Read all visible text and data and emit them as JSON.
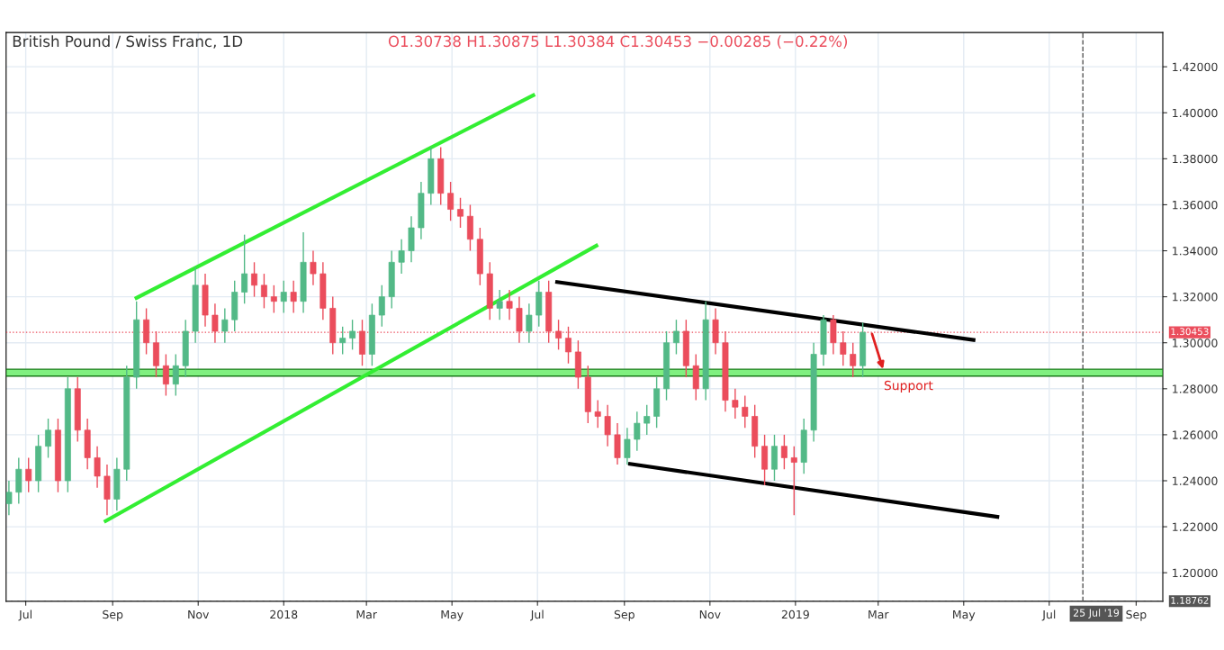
{
  "chart_data": {
    "type": "candlestick",
    "title": "British Pound / Swiss Franc, 1D",
    "subtitle": "O1.30738 H1.30875 L1.30384 C1.30453 −0.00285 (−0.22%)",
    "x": [
      "2017-06-19",
      "2017-06-26",
      "2017-07-03",
      "2017-07-10",
      "2017-07-17",
      "2017-07-24",
      "2017-07-31",
      "2017-08-07",
      "2017-08-14",
      "2017-08-21",
      "2017-08-28",
      "2017-09-04",
      "2017-09-11",
      "2017-09-18",
      "2017-09-25",
      "2017-10-02",
      "2017-10-09",
      "2017-10-16",
      "2017-10-23",
      "2017-10-30",
      "2017-11-06",
      "2017-11-13",
      "2017-11-20",
      "2017-11-27",
      "2017-12-04",
      "2017-12-11",
      "2017-12-18",
      "2017-12-25",
      "2018-01-01",
      "2018-01-08",
      "2018-01-15",
      "2018-01-22",
      "2018-01-29",
      "2018-02-05",
      "2018-02-12",
      "2018-02-19",
      "2018-02-26",
      "2018-03-05",
      "2018-03-12",
      "2018-03-19",
      "2018-03-26",
      "2018-04-02",
      "2018-04-09",
      "2018-04-16",
      "2018-04-23",
      "2018-04-30",
      "2018-05-07",
      "2018-05-14",
      "2018-05-21",
      "2018-05-28",
      "2018-06-04",
      "2018-06-11",
      "2018-06-18",
      "2018-06-25",
      "2018-07-02",
      "2018-07-09",
      "2018-07-16",
      "2018-07-23",
      "2018-07-30",
      "2018-08-06",
      "2018-08-13",
      "2018-08-20",
      "2018-08-27",
      "2018-09-03",
      "2018-09-10",
      "2018-09-17",
      "2018-09-24",
      "2018-10-01",
      "2018-10-08",
      "2018-10-15",
      "2018-10-22",
      "2018-10-29",
      "2018-11-05",
      "2018-11-12",
      "2018-11-19",
      "2018-11-26",
      "2018-12-03",
      "2018-12-10",
      "2018-12-17",
      "2018-12-24",
      "2018-12-31",
      "2019-01-07",
      "2019-01-14",
      "2019-01-21",
      "2019-01-28",
      "2019-02-04",
      "2019-02-11",
      "2019-02-18"
    ],
    "ohlc": [
      [
        1.23,
        1.24,
        1.225,
        1.235
      ],
      [
        1.235,
        1.25,
        1.23,
        1.245
      ],
      [
        1.245,
        1.25,
        1.235,
        1.24
      ],
      [
        1.24,
        1.26,
        1.235,
        1.255
      ],
      [
        1.255,
        1.267,
        1.25,
        1.262
      ],
      [
        1.262,
        1.267,
        1.235,
        1.24
      ],
      [
        1.24,
        1.285,
        1.235,
        1.28
      ],
      [
        1.28,
        1.285,
        1.257,
        1.262
      ],
      [
        1.262,
        1.267,
        1.245,
        1.25
      ],
      [
        1.25,
        1.255,
        1.237,
        1.242
      ],
      [
        1.242,
        1.247,
        1.225,
        1.232
      ],
      [
        1.232,
        1.25,
        1.227,
        1.245
      ],
      [
        1.245,
        1.29,
        1.24,
        1.285
      ],
      [
        1.285,
        1.318,
        1.28,
        1.31
      ],
      [
        1.31,
        1.315,
        1.295,
        1.3
      ],
      [
        1.3,
        1.305,
        1.285,
        1.29
      ],
      [
        1.29,
        1.295,
        1.277,
        1.282
      ],
      [
        1.282,
        1.295,
        1.277,
        1.29
      ],
      [
        1.29,
        1.31,
        1.285,
        1.305
      ],
      [
        1.305,
        1.333,
        1.3,
        1.325
      ],
      [
        1.325,
        1.33,
        1.307,
        1.312
      ],
      [
        1.312,
        1.317,
        1.3,
        1.305
      ],
      [
        1.305,
        1.315,
        1.3,
        1.31
      ],
      [
        1.31,
        1.327,
        1.305,
        1.322
      ],
      [
        1.322,
        1.347,
        1.317,
        1.33
      ],
      [
        1.33,
        1.335,
        1.32,
        1.325
      ],
      [
        1.325,
        1.33,
        1.315,
        1.32
      ],
      [
        1.32,
        1.325,
        1.313,
        1.318
      ],
      [
        1.318,
        1.327,
        1.313,
        1.322
      ],
      [
        1.322,
        1.327,
        1.313,
        1.318
      ],
      [
        1.318,
        1.348,
        1.313,
        1.335
      ],
      [
        1.335,
        1.34,
        1.325,
        1.33
      ],
      [
        1.33,
        1.335,
        1.31,
        1.315
      ],
      [
        1.315,
        1.32,
        1.295,
        1.3
      ],
      [
        1.3,
        1.307,
        1.295,
        1.302
      ],
      [
        1.302,
        1.31,
        1.297,
        1.305
      ],
      [
        1.305,
        1.31,
        1.29,
        1.295
      ],
      [
        1.295,
        1.317,
        1.29,
        1.312
      ],
      [
        1.312,
        1.325,
        1.307,
        1.32
      ],
      [
        1.32,
        1.34,
        1.315,
        1.335
      ],
      [
        1.335,
        1.345,
        1.33,
        1.34
      ],
      [
        1.34,
        1.355,
        1.335,
        1.35
      ],
      [
        1.35,
        1.37,
        1.345,
        1.365
      ],
      [
        1.365,
        1.385,
        1.36,
        1.38
      ],
      [
        1.38,
        1.385,
        1.36,
        1.365
      ],
      [
        1.365,
        1.37,
        1.353,
        1.358
      ],
      [
        1.358,
        1.363,
        1.35,
        1.355
      ],
      [
        1.355,
        1.36,
        1.34,
        1.345
      ],
      [
        1.345,
        1.35,
        1.325,
        1.33
      ],
      [
        1.33,
        1.335,
        1.31,
        1.315
      ],
      [
        1.315,
        1.323,
        1.31,
        1.318
      ],
      [
        1.318,
        1.323,
        1.31,
        1.315
      ],
      [
        1.315,
        1.32,
        1.3,
        1.305
      ],
      [
        1.305,
        1.317,
        1.3,
        1.312
      ],
      [
        1.312,
        1.327,
        1.307,
        1.322
      ],
      [
        1.322,
        1.327,
        1.3,
        1.305
      ],
      [
        1.305,
        1.31,
        1.297,
        1.302
      ],
      [
        1.302,
        1.307,
        1.291,
        1.296
      ],
      [
        1.296,
        1.301,
        1.28,
        1.285
      ],
      [
        1.285,
        1.29,
        1.265,
        1.27
      ],
      [
        1.27,
        1.275,
        1.263,
        1.268
      ],
      [
        1.268,
        1.273,
        1.255,
        1.26
      ],
      [
        1.26,
        1.265,
        1.247,
        1.25
      ],
      [
        1.25,
        1.263,
        1.247,
        1.258
      ],
      [
        1.258,
        1.27,
        1.253,
        1.265
      ],
      [
        1.265,
        1.273,
        1.26,
        1.268
      ],
      [
        1.268,
        1.285,
        1.263,
        1.28
      ],
      [
        1.28,
        1.305,
        1.275,
        1.3
      ],
      [
        1.3,
        1.31,
        1.295,
        1.305
      ],
      [
        1.305,
        1.31,
        1.285,
        1.29
      ],
      [
        1.29,
        1.295,
        1.275,
        1.28
      ],
      [
        1.28,
        1.318,
        1.275,
        1.31
      ],
      [
        1.31,
        1.315,
        1.295,
        1.3
      ],
      [
        1.3,
        1.305,
        1.27,
        1.275
      ],
      [
        1.275,
        1.28,
        1.267,
        1.272
      ],
      [
        1.272,
        1.277,
        1.263,
        1.268
      ],
      [
        1.268,
        1.273,
        1.25,
        1.255
      ],
      [
        1.255,
        1.26,
        1.238,
        1.245
      ],
      [
        1.245,
        1.26,
        1.24,
        1.255
      ],
      [
        1.255,
        1.26,
        1.245,
        1.25
      ],
      [
        1.25,
        1.255,
        1.225,
        1.248
      ],
      [
        1.248,
        1.267,
        1.243,
        1.262
      ],
      [
        1.262,
        1.3,
        1.257,
        1.295
      ],
      [
        1.295,
        1.312,
        1.29,
        1.31
      ],
      [
        1.31,
        1.312,
        1.295,
        1.3
      ],
      [
        1.3,
        1.305,
        1.29,
        1.295
      ],
      [
        1.295,
        1.3,
        1.285,
        1.29
      ],
      [
        1.29,
        1.30875,
        1.285,
        1.30453
      ]
    ],
    "colors": [
      "#53b987",
      "#53b987",
      "#eb4d5c",
      "#53b987",
      "#53b987",
      "#eb4d5c",
      "#53b987",
      "#eb4d5c",
      "#eb4d5c",
      "#eb4d5c",
      "#eb4d5c",
      "#53b987",
      "#53b987",
      "#53b987",
      "#eb4d5c",
      "#eb4d5c",
      "#eb4d5c",
      "#53b987",
      "#53b987",
      "#53b987",
      "#eb4d5c",
      "#eb4d5c",
      "#53b987",
      "#53b987",
      "#53b987",
      "#eb4d5c",
      "#eb4d5c",
      "#eb4d5c",
      "#53b987",
      "#eb4d5c",
      "#53b987",
      "#eb4d5c",
      "#eb4d5c",
      "#eb4d5c",
      "#53b987",
      "#53b987",
      "#eb4d5c",
      "#53b987",
      "#53b987",
      "#53b987",
      "#53b987",
      "#53b987",
      "#53b987",
      "#53b987",
      "#eb4d5c",
      "#eb4d5c",
      "#eb4d5c",
      "#eb4d5c",
      "#eb4d5c",
      "#eb4d5c",
      "#53b987",
      "#eb4d5c",
      "#eb4d5c",
      "#53b987",
      "#53b987",
      "#eb4d5c",
      "#eb4d5c",
      "#eb4d5c",
      "#eb4d5c",
      "#eb4d5c",
      "#eb4d5c",
      "#eb4d5c",
      "#eb4d5c",
      "#53b987",
      "#53b987",
      "#53b987",
      "#53b987",
      "#53b987",
      "#53b987",
      "#eb4d5c",
      "#eb4d5c",
      "#53b987",
      "#eb4d5c",
      "#eb4d5c",
      "#eb4d5c",
      "#eb4d5c",
      "#eb4d5c",
      "#eb4d5c",
      "#53b987",
      "#eb4d5c",
      "#eb4d5c",
      "#53b987",
      "#53b987",
      "#53b987",
      "#eb4d5c",
      "#eb4d5c",
      "#eb4d5c",
      "#53b987"
    ],
    "series": [
      {
        "type": "line",
        "color": "#33ee33",
        "x": [
          "2017-09-18",
          "2018-06-28"
        ],
        "values": [
          1.3195,
          1.4076
        ]
      },
      {
        "type": "line",
        "color": "#33ee33",
        "x": [
          "2017-08-27",
          "2018-08-12"
        ],
        "values": [
          1.2225,
          1.3422
        ]
      },
      {
        "type": "line",
        "color": "#000000",
        "x": [
          "2018-07-15",
          "2019-05-08"
        ],
        "values": [
          1.3264,
          1.3012
        ]
      },
      {
        "type": "line",
        "color": "#000000",
        "x": [
          "2018-09-05",
          "2019-05-25"
        ],
        "values": [
          1.2473,
          1.2243
        ]
      }
    ],
    "bands": [
      {
        "axis": "y",
        "from": 1.2855,
        "to": 1.2885,
        "color": "#80f080"
      }
    ],
    "annotations": [
      {
        "text": "Support",
        "x": "2019-03-05",
        "y": 1.2875
      }
    ],
    "ref_lines": [
      {
        "axis": "y",
        "value": 1.30453,
        "label": "1.30453",
        "color": "#eb4d5c",
        "line_style": "dotted"
      },
      {
        "axis": "y",
        "value": 1.18762,
        "label": "1.18762",
        "color": "#555555",
        "line_style": "dashed"
      },
      {
        "axis": "x",
        "value": "2019-07-25",
        "label": "25 Jul '19",
        "color": "#555555",
        "line_style": "dashed"
      }
    ],
    "xlim": [
      "2017-06-17",
      "2019-09-20"
    ],
    "xticks": [
      {
        "value": "2017-07-01",
        "label": "Jul"
      },
      {
        "value": "2017-09-01",
        "label": "Sep"
      },
      {
        "value": "2017-11-01",
        "label": "Nov"
      },
      {
        "value": "2018-01-01",
        "label": "2018"
      },
      {
        "value": "2018-03-01",
        "label": "Mar"
      },
      {
        "value": "2018-05-01",
        "label": "May"
      },
      {
        "value": "2018-07-01",
        "label": "Jul"
      },
      {
        "value": "2018-09-01",
        "label": "Sep"
      },
      {
        "value": "2018-11-01",
        "label": "Nov"
      },
      {
        "value": "2019-01-01",
        "label": "2019"
      },
      {
        "value": "2019-03-01",
        "label": "Mar"
      },
      {
        "value": "2019-05-01",
        "label": "May"
      },
      {
        "value": "2019-07-01",
        "label": "Jul"
      },
      {
        "value": "2019-09-01",
        "label": "Sep"
      }
    ],
    "ylim": [
      1.1876,
      1.4349
    ],
    "yticks": [
      {
        "value": 1.2,
        "label": "1.20000"
      },
      {
        "value": 1.22,
        "label": "1.22000"
      },
      {
        "value": 1.24,
        "label": "1.24000"
      },
      {
        "value": 1.26,
        "label": "1.26000"
      },
      {
        "value": 1.28,
        "label": "1.28000"
      },
      {
        "value": 1.3,
        "label": "1.30000"
      },
      {
        "value": 1.32,
        "label": "1.32000"
      },
      {
        "value": 1.34,
        "label": "1.34000"
      },
      {
        "value": 1.36,
        "label": "1.36000"
      },
      {
        "value": 1.38,
        "label": "1.38000"
      },
      {
        "value": 1.4,
        "label": "1.40000"
      },
      {
        "value": 1.42,
        "label": "1.42000"
      }
    ],
    "grid": true
  }
}
